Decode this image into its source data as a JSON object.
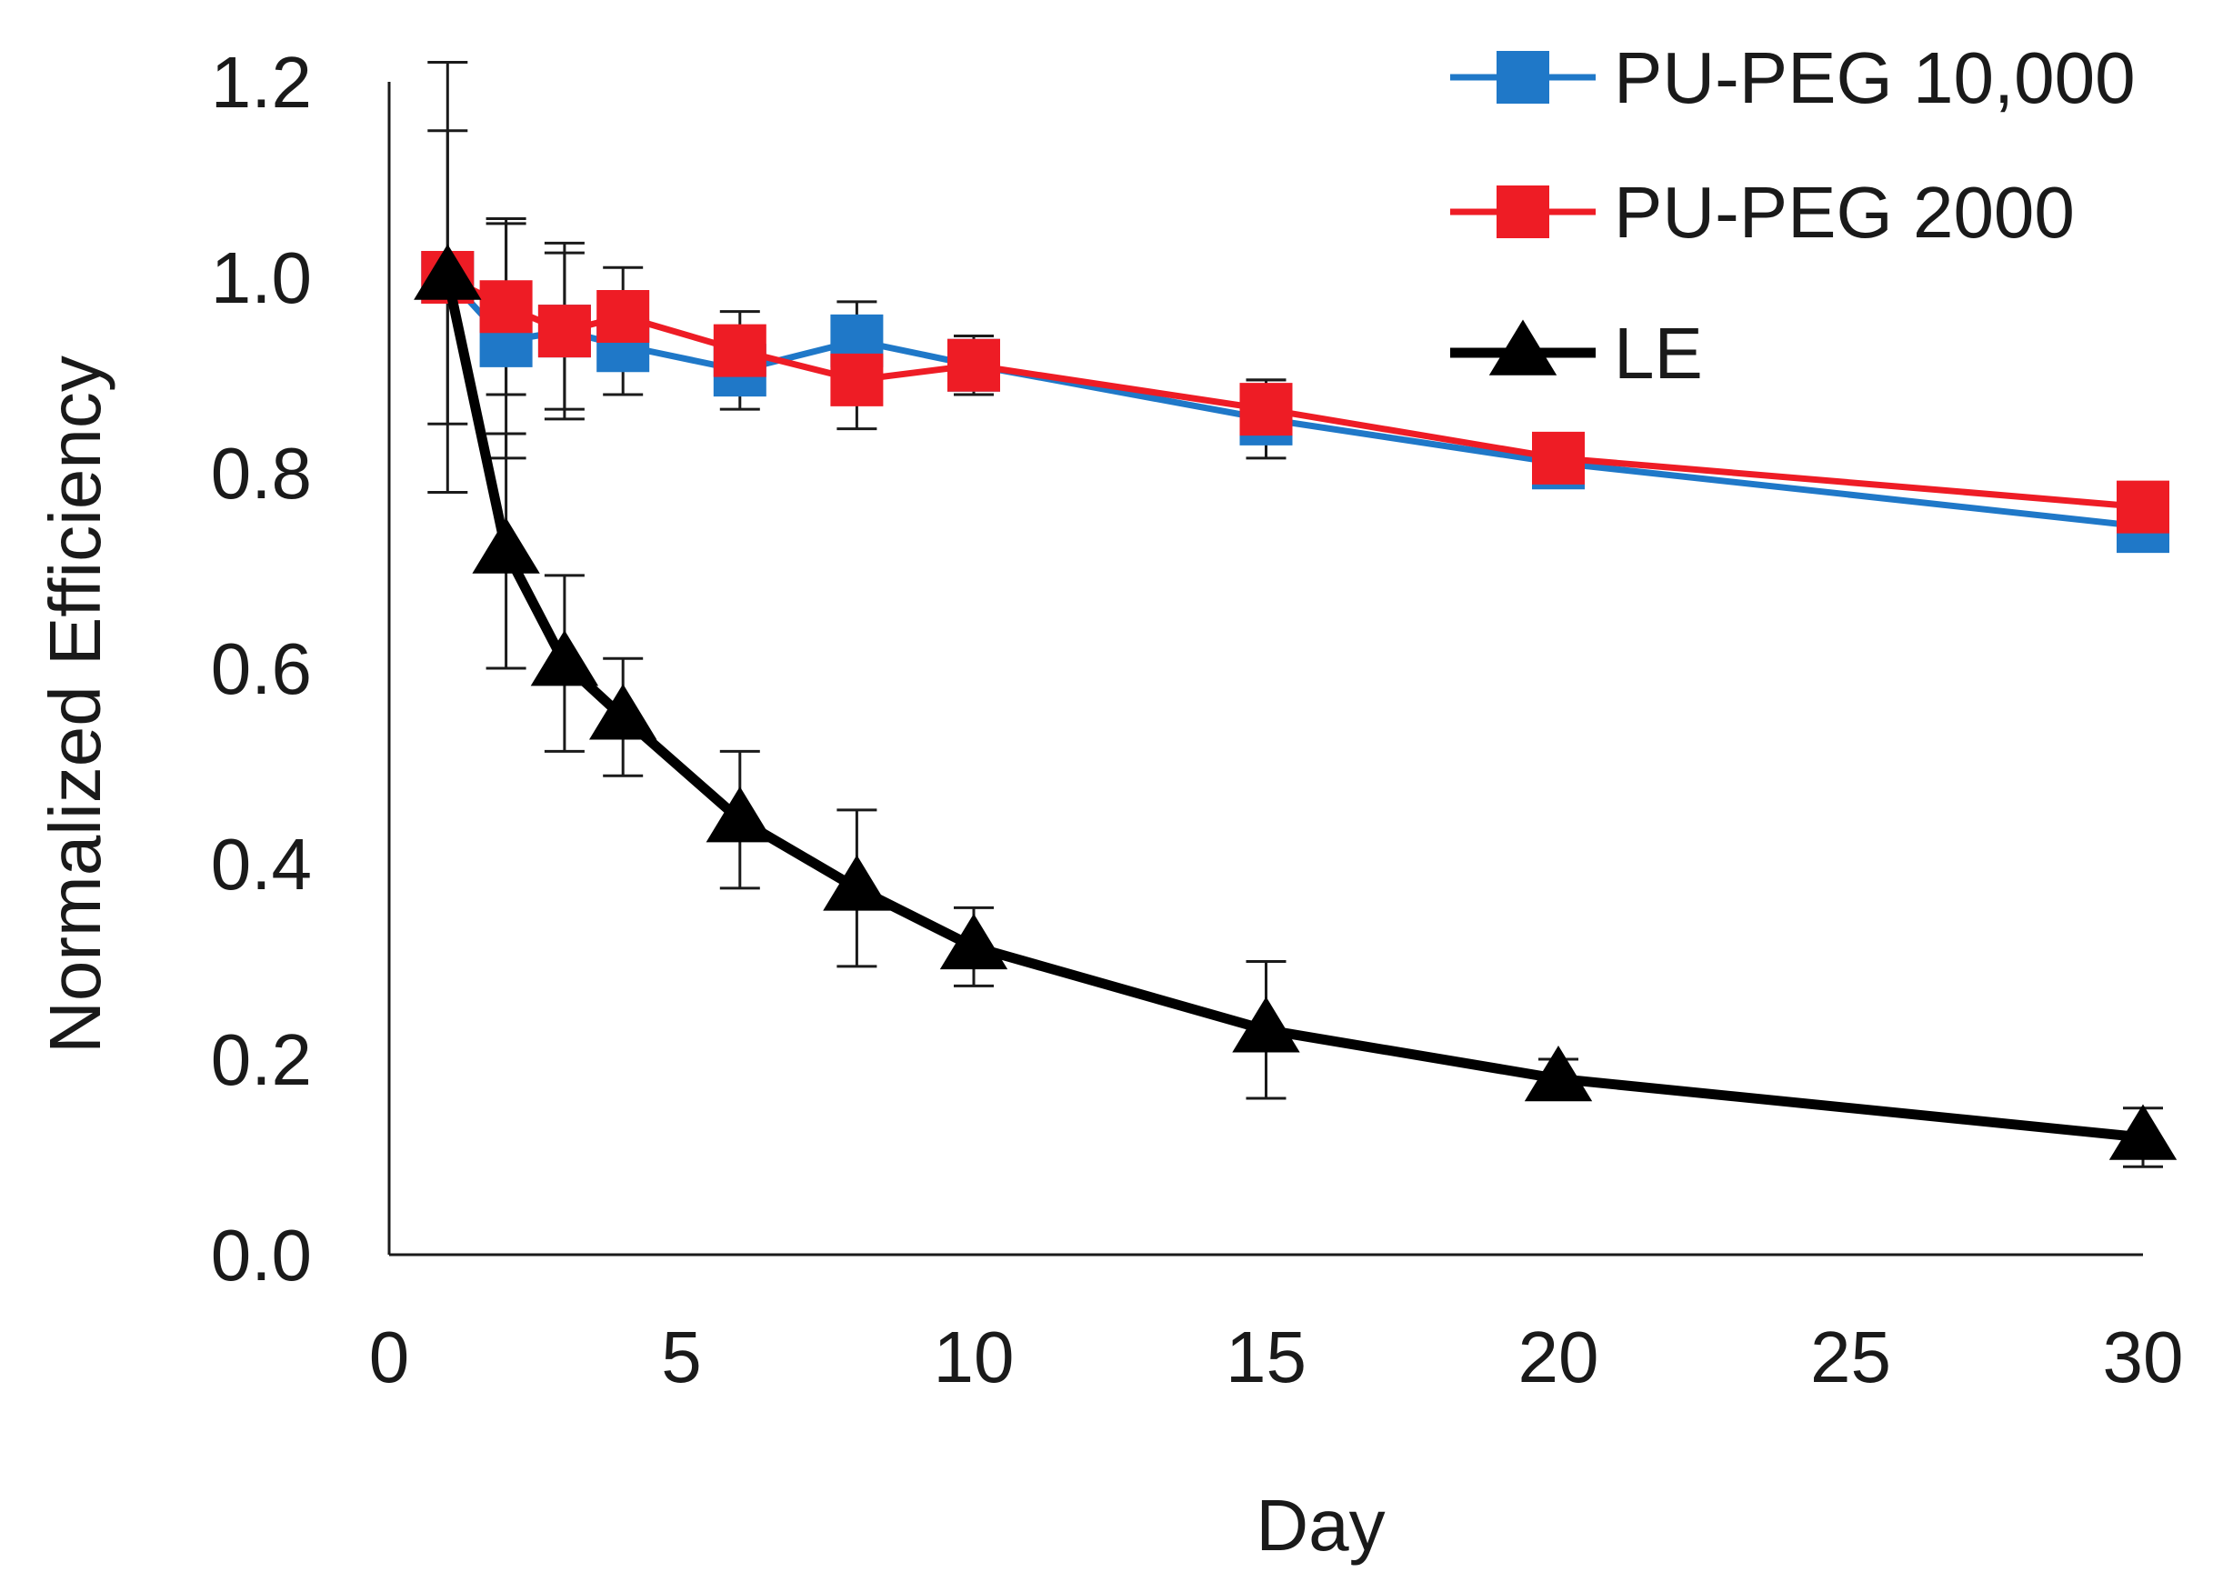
{
  "chart_data": {
    "type": "line",
    "title": "",
    "xlabel": "Day",
    "ylabel": "Normalized Efficiency",
    "xlim": [
      0,
      30
    ],
    "ylim": [
      0,
      1.2
    ],
    "xticks": [
      0,
      5,
      10,
      15,
      20,
      25,
      30
    ],
    "yticks": [
      0.0,
      0.2,
      0.4,
      0.6,
      0.8,
      1.0,
      1.2
    ],
    "xtick_labels": [
      "0",
      "5",
      "10",
      "15",
      "20",
      "25",
      "30"
    ],
    "ytick_labels": [
      "0.0",
      "0.2",
      "0.4",
      "0.6",
      "0.8",
      "1.0",
      "1.2"
    ],
    "grid": false,
    "legend_position": "top-right",
    "x": [
      1,
      2,
      3,
      4,
      6,
      8,
      10,
      15,
      20,
      30
    ],
    "series": [
      {
        "name": "PU-PEG 10,000",
        "color": "#1f78c8",
        "marker": "square",
        "values": [
          1.0,
          0.935,
          0.945,
          0.93,
          0.905,
          0.935,
          0.91,
          0.855,
          0.81,
          0.745
        ],
        "errors": [
          0.0,
          0.12,
          0.08,
          0.05,
          0.04,
          0.04,
          0.03,
          0.04,
          0.0,
          0.0
        ]
      },
      {
        "name": "PU-PEG 2000",
        "color": "#ee1c25",
        "marker": "square",
        "values": [
          1.0,
          0.97,
          0.945,
          0.96,
          0.925,
          0.895,
          0.91,
          0.865,
          0.815,
          0.765
        ],
        "errors": [
          0.15,
          0.09,
          0.09,
          0.05,
          0.04,
          0.05,
          0.03,
          0.03,
          0.0,
          0.0
        ]
      },
      {
        "name": "LE",
        "color": "#000000",
        "marker": "triangle",
        "values": [
          1.0,
          0.72,
          0.605,
          0.55,
          0.445,
          0.375,
          0.315,
          0.23,
          0.18,
          0.12
        ],
        "errors": [
          0.22,
          0.12,
          0.09,
          0.06,
          0.07,
          0.08,
          0.04,
          0.07,
          0.02,
          0.03
        ]
      }
    ]
  }
}
